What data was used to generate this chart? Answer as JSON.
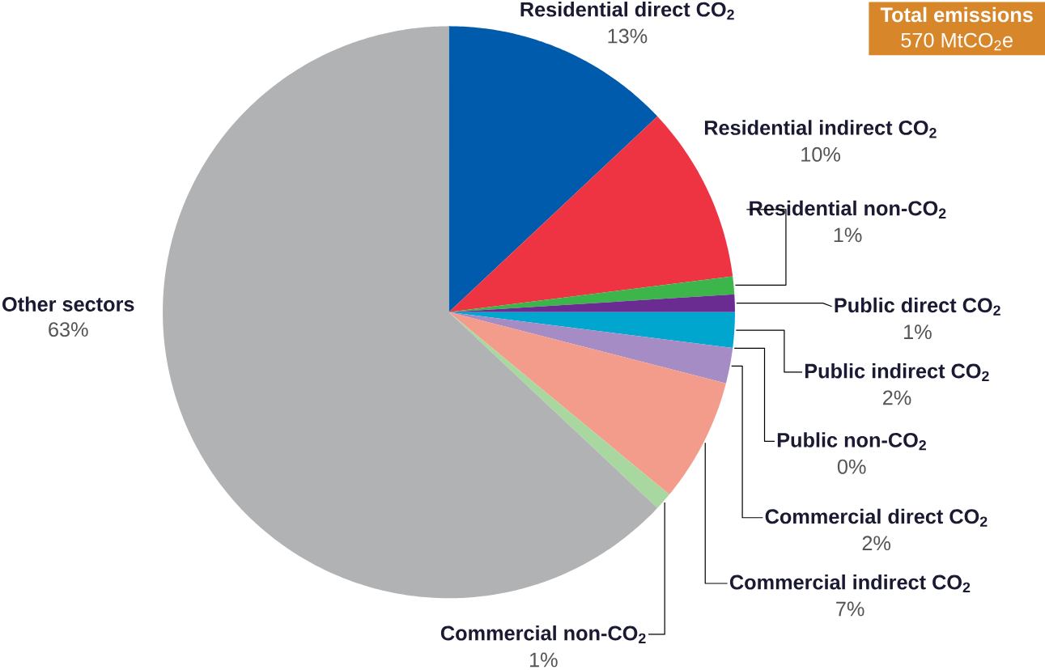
{
  "chart_data": {
    "type": "pie",
    "categories": [
      "Residential direct CO$_{2}$",
      "Residential indirect CO$_{2}$",
      "Residential non-CO$_{2}$",
      "Public direct CO$_{2}$",
      "Public indirect CO$_{2}$",
      "Public non-CO$_{2}$",
      "Commercial direct CO$_{2}$",
      "Commercial indirect CO$_{2}$",
      "Commercial non-CO$_{2}$",
      "Other sectors"
    ],
    "values": [
      13,
      10,
      1,
      1,
      2,
      0,
      2,
      7,
      1,
      63
    ],
    "value_labels": [
      "13%",
      "10%",
      "1%",
      "1%",
      "2%",
      "0%",
      "2%",
      "7%",
      "1%",
      "63%"
    ],
    "colors": [
      "#005bac",
      "#ee3342",
      "#3cb54a",
      "#6a2c91",
      "#00a6ce",
      "#5b9bd5",
      "#a58cc4",
      "#f49c8c",
      "#a8d8a0",
      "#b1b2b4"
    ],
    "annotations": [
      "Total emissions",
      "570 MtCO$_{2}$e"
    ]
  }
}
